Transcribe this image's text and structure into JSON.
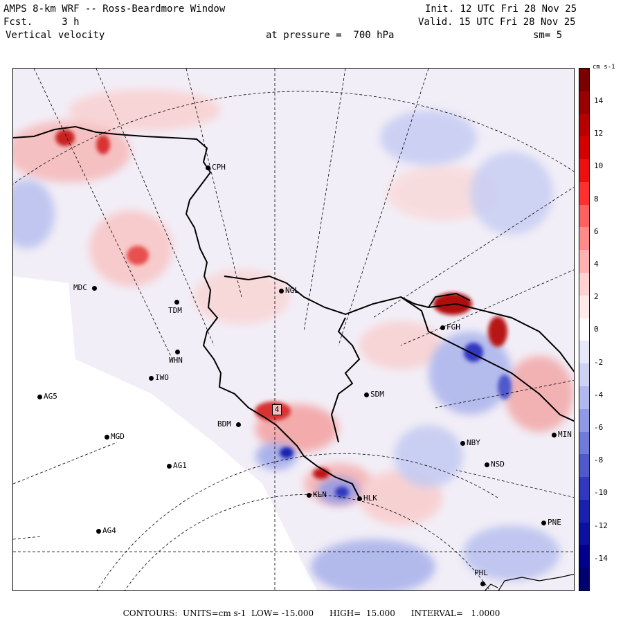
{
  "header": {
    "title": "AMPS 8-km WRF -- Ross-Beardmore Window",
    "forecast": "Fcst.     3 h",
    "field": "Vertical velocity",
    "init": "Init. 12 UTC Fri 28 Nov 25",
    "valid": "Valid. 15 UTC Fri 28 Nov 25",
    "pressure": "at pressure =  700 hPa",
    "smoothing": "sm= 5"
  },
  "colorbar": {
    "units": "cm s-1",
    "labels": [
      "14",
      "12",
      "10",
      "8",
      "6",
      "4",
      "2",
      "0",
      "-2",
      "-4",
      "-6",
      "-8",
      "-10",
      "-12",
      "-14"
    ],
    "colors": [
      "#7a0000",
      "#990000",
      "#b80000",
      "#d40000",
      "#ee1010",
      "#ff3030",
      "#ff6060",
      "#ff8a8a",
      "#ffb0b0",
      "#ffd2d2",
      "#ffeaea",
      "#ffffff",
      "#e6e8fa",
      "#cdd2f5",
      "#b0b8ef",
      "#8f99e6",
      "#6f7ada",
      "#4f59cc",
      "#3038bf",
      "#1820b0",
      "#0a10a0",
      "#00008c",
      "#000070"
    ]
  },
  "stations": [
    {
      "id": "CPH",
      "label": "CPH"
    },
    {
      "id": "NGL",
      "label": "NGL"
    },
    {
      "id": "MDC",
      "label": "MDC"
    },
    {
      "id": "TDM",
      "label": "TDM"
    },
    {
      "id": "WHN",
      "label": "WHN"
    },
    {
      "id": "IWO",
      "label": "IWO"
    },
    {
      "id": "AG5",
      "label": "AG5"
    },
    {
      "id": "MGD",
      "label": "MGD"
    },
    {
      "id": "BDM",
      "label": "BDM"
    },
    {
      "id": "AG1",
      "label": "AG1"
    },
    {
      "id": "AG4",
      "label": "AG4"
    },
    {
      "id": "SDM",
      "label": "SDM"
    },
    {
      "id": "FGH",
      "label": "FGH"
    },
    {
      "id": "NBY",
      "label": "NBY"
    },
    {
      "id": "NSD",
      "label": "NSD"
    },
    {
      "id": "KLN",
      "label": "KLN"
    },
    {
      "id": "HLK",
      "label": "HLK"
    },
    {
      "id": "PNE",
      "label": "PNE"
    },
    {
      "id": "PHL",
      "label": "PHL"
    },
    {
      "id": "MIN",
      "label": "MIN"
    }
  ],
  "map_labels": {
    "max_marker": "4"
  },
  "footer": "CONTOURS:  UNITS=cm s-1  LOW= -15.000      HIGH=  15.000      INTERVAL=   1.0000"
}
